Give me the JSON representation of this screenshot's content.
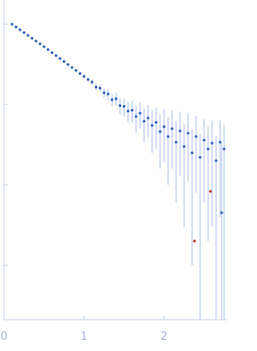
{
  "chart_data": {
    "type": "scatter",
    "log_y": true,
    "grid": false,
    "xlim": [
      0,
      2.78
    ],
    "xticks": [
      0,
      1,
      2
    ],
    "ylim": [
      0.00021,
      2
    ],
    "yticks": [
      1,
      0.1,
      0.01,
      0.001
    ],
    "series": [
      {
        "name": "data",
        "color": "#3a67b7",
        "error_color": "#b7c9ec",
        "x": [
          0.1,
          0.15,
          0.2,
          0.25,
          0.3,
          0.35,
          0.4,
          0.45,
          0.5,
          0.55,
          0.6,
          0.65,
          0.7,
          0.75,
          0.8,
          0.85,
          0.9,
          0.95,
          1.0,
          1.05,
          1.1,
          1.15,
          1.2,
          1.25,
          1.3,
          1.35,
          1.4,
          1.45,
          1.5,
          1.55,
          1.6,
          1.65,
          1.7,
          1.75,
          1.8,
          1.85,
          1.9,
          1.95,
          2.0,
          2.05,
          2.1,
          2.15,
          2.2,
          2.25,
          2.3,
          2.35,
          2.4,
          2.45,
          2.5,
          2.55,
          2.6,
          2.65,
          2.7,
          2.72,
          2.75
        ],
        "values": [
          1.0,
          0.923,
          0.851,
          0.785,
          0.724,
          0.668,
          0.617,
          0.569,
          0.525,
          0.483,
          0.443,
          0.407,
          0.374,
          0.343,
          0.315,
          0.289,
          0.266,
          0.243,
          0.224,
          0.205,
          0.19,
          0.165,
          0.16,
          0.14,
          0.135,
          0.115,
          0.118,
          0.097,
          0.095,
          0.083,
          0.085,
          0.071,
          0.078,
          0.062,
          0.068,
          0.055,
          0.06,
          0.046,
          0.053,
          0.04,
          0.05,
          0.034,
          0.047,
          0.03,
          0.044,
          0.025,
          0.04,
          0.022,
          0.036,
          0.028,
          0.033,
          0.02,
          0.034,
          0.0045,
          0.028
        ],
        "errors": [
          0.004,
          0.004,
          0.004,
          0.004,
          0.004,
          0.004,
          0.004,
          0.004,
          0.005,
          0.005,
          0.005,
          0.005,
          0.006,
          0.006,
          0.006,
          0.007,
          0.008,
          0.008,
          0.01,
          0.012,
          0.014,
          0.015,
          0.017,
          0.018,
          0.02,
          0.02,
          0.022,
          0.022,
          0.024,
          0.024,
          0.026,
          0.026,
          0.028,
          0.028,
          0.03,
          0.03,
          0.032,
          0.03,
          0.034,
          0.03,
          0.034,
          0.028,
          0.034,
          0.027,
          0.033,
          0.024,
          0.032,
          0.022,
          0.03,
          0.026,
          0.03,
          0.02,
          0.03,
          0.03,
          0.028
        ]
      },
      {
        "name": "outliers",
        "color": "#c0392b",
        "x": [
          2.38,
          2.58
        ],
        "values": [
          0.002,
          0.0083
        ]
      }
    ]
  }
}
